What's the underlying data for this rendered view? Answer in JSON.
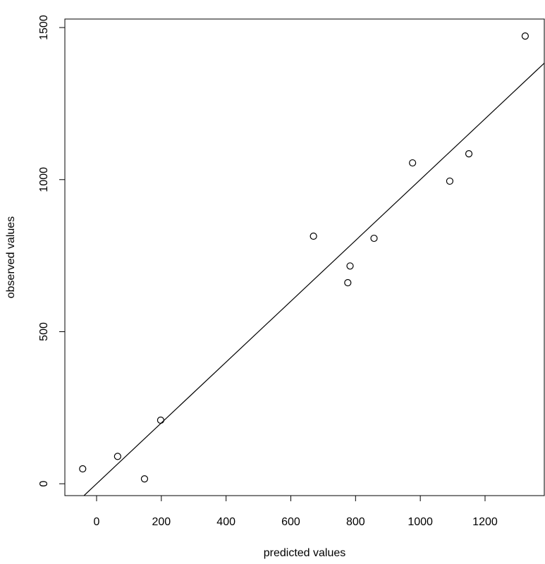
{
  "chart_data": {
    "type": "scatter",
    "x_label": "predicted values",
    "y_label": "observed values",
    "x": [
      -43,
      65,
      148,
      198,
      670,
      776,
      783,
      857,
      976,
      1091,
      1150,
      1324
    ],
    "values": [
      49,
      90,
      16,
      209,
      814,
      661,
      716,
      807,
      1055,
      995,
      1085,
      1472
    ],
    "color": "#000000",
    "abline": {
      "intercept": 0,
      "slope": 1
    },
    "xlim": [
      -98,
      1383
    ],
    "ylim": [
      -39,
      1528
    ],
    "xticks": [
      0,
      200,
      400,
      600,
      800,
      1000,
      1200
    ],
    "yticks": [
      0,
      500,
      1000,
      1500
    ]
  }
}
